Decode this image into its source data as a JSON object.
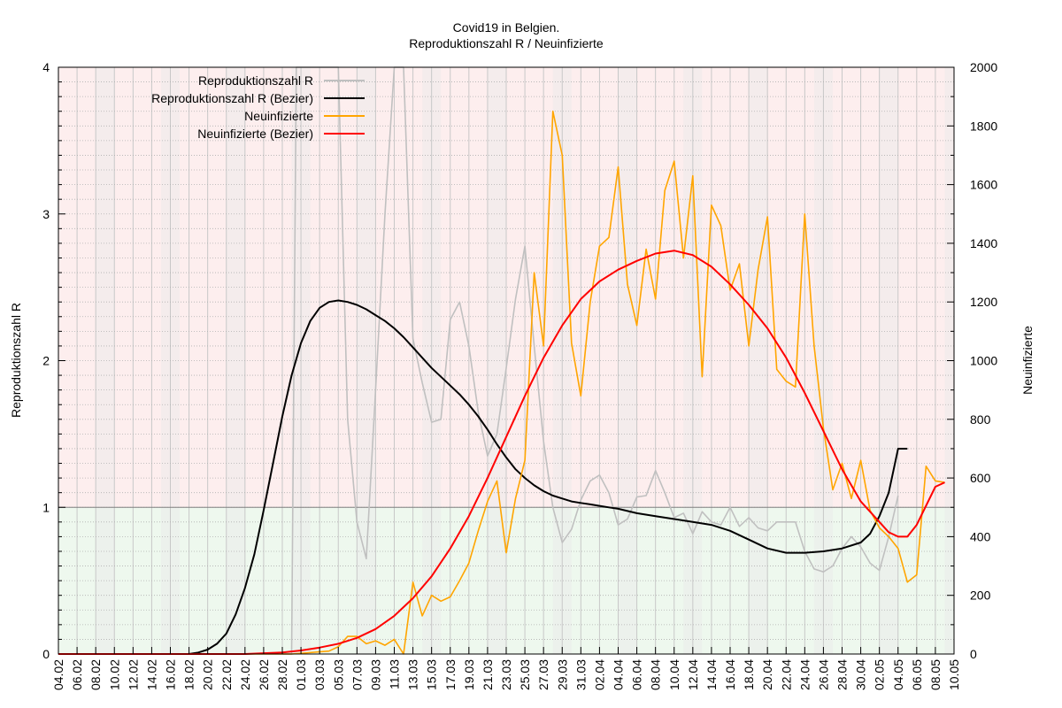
{
  "chart_data": {
    "type": "line",
    "title": "Covid19 in Belgien.",
    "subtitle": "Reproduktionszahl R / Neuinfizierte",
    "ylabel": "Reproduktionszahl R",
    "y2label": "Neuinfizierte",
    "ylim": [
      0,
      4
    ],
    "y2lim": [
      0,
      2000
    ],
    "yticks": [
      "0",
      "1",
      "2",
      "3",
      "4"
    ],
    "y2ticks": [
      "0",
      "200",
      "400",
      "600",
      "800",
      "1000",
      "1200",
      "1400",
      "1600",
      "1800",
      "2000"
    ],
    "xlim": [
      0,
      96
    ],
    "xticks": [
      {
        "x": 0,
        "label": "04.02"
      },
      {
        "x": 2,
        "label": "06.02"
      },
      {
        "x": 4,
        "label": "08.02"
      },
      {
        "x": 6,
        "label": "10.02"
      },
      {
        "x": 8,
        "label": "12.02"
      },
      {
        "x": 10,
        "label": "14.02"
      },
      {
        "x": 12,
        "label": "16.02"
      },
      {
        "x": 14,
        "label": "18.02"
      },
      {
        "x": 16,
        "label": "20.02"
      },
      {
        "x": 18,
        "label": "22.02"
      },
      {
        "x": 20,
        "label": "24.02"
      },
      {
        "x": 22,
        "label": "26.02"
      },
      {
        "x": 24,
        "label": "28.02"
      },
      {
        "x": 26,
        "label": "01.03"
      },
      {
        "x": 28,
        "label": "03.03"
      },
      {
        "x": 30,
        "label": "05.03"
      },
      {
        "x": 32,
        "label": "07.03"
      },
      {
        "x": 34,
        "label": "09.03"
      },
      {
        "x": 36,
        "label": "11.03"
      },
      {
        "x": 38,
        "label": "13.03"
      },
      {
        "x": 40,
        "label": "15.03"
      },
      {
        "x": 42,
        "label": "17.03"
      },
      {
        "x": 44,
        "label": "19.03"
      },
      {
        "x": 46,
        "label": "21.03"
      },
      {
        "x": 48,
        "label": "23.03"
      },
      {
        "x": 50,
        "label": "25.03"
      },
      {
        "x": 52,
        "label": "27.03"
      },
      {
        "x": 54,
        "label": "29.03"
      },
      {
        "x": 56,
        "label": "31.03"
      },
      {
        "x": 58,
        "label": "02.04"
      },
      {
        "x": 60,
        "label": "04.04"
      },
      {
        "x": 62,
        "label": "06.04"
      },
      {
        "x": 64,
        "label": "08.04"
      },
      {
        "x": 66,
        "label": "10.04"
      },
      {
        "x": 68,
        "label": "12.04"
      },
      {
        "x": 70,
        "label": "14.04"
      },
      {
        "x": 72,
        "label": "16.04"
      },
      {
        "x": 74,
        "label": "18.04"
      },
      {
        "x": 76,
        "label": "20.04"
      },
      {
        "x": 78,
        "label": "22.04"
      },
      {
        "x": 80,
        "label": "24.04"
      },
      {
        "x": 82,
        "label": "26.04"
      },
      {
        "x": 84,
        "label": "28.04"
      },
      {
        "x": 86,
        "label": "30.04"
      },
      {
        "x": 88,
        "label": "02.05"
      },
      {
        "x": 90,
        "label": "04.05"
      },
      {
        "x": 92,
        "label": "06.05"
      },
      {
        "x": 94,
        "label": "08.05"
      },
      {
        "x": 96,
        "label": "10.05"
      }
    ],
    "weekend_bands": [
      [
        4,
        6
      ],
      [
        11,
        13
      ],
      [
        18,
        20
      ],
      [
        25,
        27
      ],
      [
        32,
        34
      ],
      [
        39,
        41
      ],
      [
        46,
        48
      ],
      [
        53,
        55
      ],
      [
        60,
        62
      ],
      [
        67,
        69
      ],
      [
        74,
        76
      ],
      [
        81,
        83
      ],
      [
        88,
        90
      ],
      [
        95,
        96
      ]
    ],
    "reference_line_r": 1,
    "colors": {
      "r_raw": "#c0c0c0",
      "r_bezier": "#000000",
      "infected_raw": "#ffa500",
      "infected_bezier": "#ff0000",
      "band_above": "#fdeeee",
      "band_below": "#eef8ee",
      "weekend_band": "#e8e8e8"
    },
    "series": [
      {
        "name": "Reproduktionszahl R",
        "axis": "left",
        "x": [
          24,
          25,
          25.5,
          26,
          27,
          28,
          29,
          30,
          31,
          32,
          33,
          34,
          35,
          36,
          37,
          38,
          39,
          40,
          41,
          42,
          43,
          44,
          45,
          46,
          47,
          48,
          49,
          50,
          51,
          52,
          53,
          54,
          55,
          56,
          57,
          58,
          59,
          60,
          61,
          62,
          63,
          64,
          65,
          66,
          67,
          68,
          69,
          70,
          71,
          72,
          73,
          74,
          75,
          76,
          77,
          78,
          79,
          80,
          81,
          82,
          83,
          84,
          85,
          86,
          87,
          88,
          89,
          90
        ],
        "y": [
          0,
          0,
          4.0,
          4.0,
          4.0,
          4.0,
          4.0,
          4.0,
          1.6,
          0.9,
          0.65,
          1.8,
          3.0,
          4.0,
          4.0,
          2.15,
          1.85,
          1.58,
          1.6,
          2.28,
          2.4,
          2.1,
          1.65,
          1.35,
          1.5,
          1.95,
          2.42,
          2.78,
          2.1,
          1.45,
          1.0,
          0.76,
          0.85,
          1.05,
          1.18,
          1.22,
          1.1,
          0.88,
          0.92,
          1.07,
          1.08,
          1.25,
          1.1,
          0.93,
          0.96,
          0.82,
          0.97,
          0.9,
          0.88,
          1.0,
          0.87,
          0.93,
          0.86,
          0.84,
          0.9,
          0.9,
          0.9,
          0.7,
          0.58,
          0.56,
          0.6,
          0.72,
          0.8,
          0.73,
          0.62,
          0.57,
          0.8,
          1.08
        ]
      },
      {
        "name": "Reproduktionszahl R (Bezier)",
        "axis": "left",
        "x": [
          0,
          10,
          14,
          15,
          16,
          17,
          18,
          19,
          20,
          21,
          22,
          23,
          24,
          25,
          26,
          27,
          28,
          29,
          30,
          31,
          32,
          33,
          34,
          35,
          36,
          37,
          38,
          39,
          40,
          41,
          42,
          43,
          44,
          45,
          46,
          47,
          48,
          49,
          50,
          51,
          52,
          53,
          54,
          55,
          56,
          57,
          58,
          59,
          60,
          62,
          64,
          66,
          68,
          70,
          72,
          74,
          76,
          78,
          80,
          82,
          84,
          86,
          87,
          88,
          89,
          90,
          91
        ],
        "y": [
          0,
          0,
          0.0,
          0.01,
          0.03,
          0.07,
          0.14,
          0.27,
          0.45,
          0.68,
          0.98,
          1.3,
          1.62,
          1.9,
          2.12,
          2.27,
          2.36,
          2.4,
          2.41,
          2.4,
          2.38,
          2.35,
          2.31,
          2.27,
          2.22,
          2.16,
          2.09,
          2.02,
          1.95,
          1.89,
          1.83,
          1.77,
          1.7,
          1.62,
          1.53,
          1.43,
          1.34,
          1.26,
          1.2,
          1.15,
          1.11,
          1.08,
          1.06,
          1.04,
          1.03,
          1.02,
          1.01,
          1.0,
          0.99,
          0.96,
          0.94,
          0.92,
          0.9,
          0.88,
          0.84,
          0.78,
          0.72,
          0.69,
          0.69,
          0.7,
          0.72,
          0.76,
          0.82,
          0.94,
          1.1,
          1.4,
          1.4
        ]
      },
      {
        "name": "Neuinfizierte",
        "axis": "right",
        "x": [
          0,
          25,
          29,
          30,
          31,
          32,
          33,
          34,
          35,
          36,
          37,
          38,
          39,
          40,
          41,
          42,
          43,
          44,
          45,
          46,
          47,
          48,
          49,
          50,
          51,
          52,
          53,
          54,
          55,
          56,
          57,
          58,
          59,
          60,
          61,
          62,
          63,
          64,
          65,
          66,
          67,
          68,
          69,
          70,
          71,
          72,
          73,
          74,
          75,
          76,
          77,
          78,
          79,
          80,
          81,
          82,
          83,
          84,
          85,
          86,
          87,
          88,
          89,
          90,
          91,
          92,
          93,
          94,
          95
        ],
        "y": [
          0,
          0,
          10,
          25,
          60,
          60,
          35,
          45,
          30,
          50,
          0,
          245,
          130,
          200,
          180,
          195,
          250,
          310,
          420,
          520,
          590,
          345,
          530,
          660,
          1300,
          1050,
          1850,
          1700,
          1060,
          880,
          1200,
          1390,
          1420,
          1660,
          1260,
          1120,
          1380,
          1210,
          1580,
          1680,
          1350,
          1630,
          945,
          1530,
          1460,
          1240,
          1330,
          1050,
          1310,
          1490,
          970,
          930,
          910,
          1500,
          1050,
          770,
          560,
          650,
          530,
          660,
          490,
          430,
          400,
          360,
          245,
          270,
          640,
          590,
          585
        ]
      },
      {
        "name": "Neuinfizierte (Bezier)",
        "axis": "right",
        "x": [
          0,
          20,
          24,
          26,
          28,
          30,
          32,
          34,
          36,
          38,
          40,
          42,
          44,
          46,
          48,
          50,
          52,
          54,
          56,
          58,
          60,
          62,
          64,
          66,
          68,
          70,
          72,
          74,
          76,
          78,
          80,
          82,
          84,
          86,
          88,
          89,
          90,
          91,
          92,
          94,
          95
        ],
        "y": [
          0,
          0,
          5,
          12,
          22,
          35,
          55,
          85,
          130,
          190,
          265,
          360,
          470,
          600,
          740,
          880,
          1010,
          1120,
          1210,
          1270,
          1310,
          1340,
          1365,
          1375,
          1360,
          1320,
          1260,
          1190,
          1110,
          1010,
          890,
          760,
          630,
          520,
          450,
          415,
          400,
          400,
          440,
          570,
          585
        ]
      }
    ]
  }
}
